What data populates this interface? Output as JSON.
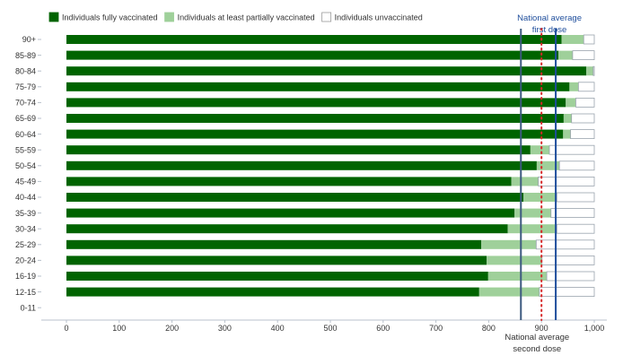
{
  "chart_data": {
    "type": "bar",
    "orientation": "horizontal",
    "stacked": true,
    "categories": [
      "90+",
      "85-89",
      "80-84",
      "75-79",
      "70-74",
      "65-69",
      "60-64",
      "55-59",
      "50-54",
      "45-49",
      "40-44",
      "35-39",
      "30-34",
      "25-29",
      "20-24",
      "16-19",
      "12-15",
      "0-11"
    ],
    "series": [
      {
        "name": "Individuals fully vaccinated",
        "color": "#006400",
        "values": [
          938,
          932,
          985,
          953,
          946,
          942,
          941,
          879,
          891,
          843,
          866,
          849,
          836,
          786,
          796,
          799,
          782,
          0
        ]
      },
      {
        "name": "Individuals at least partially vaccinated",
        "color": "#9fd09a",
        "values": [
          42,
          27,
          13,
          17,
          19,
          15,
          14,
          36,
          43,
          51,
          63,
          69,
          93,
          104,
          105,
          111,
          114,
          0
        ]
      },
      {
        "name": "Individuals unvaccinated",
        "color": "#ffffff",
        "values": [
          20,
          41,
          2,
          30,
          35,
          43,
          45,
          85,
          66,
          106,
          71,
          82,
          71,
          110,
          99,
          90,
          104,
          0
        ]
      }
    ],
    "xlim": [
      0,
      1000
    ],
    "xticks": [
      "0",
      "100",
      "200",
      "300",
      "400",
      "500",
      "600",
      "700",
      "800",
      "900",
      "1,000"
    ],
    "xtick_values": [
      0,
      100,
      200,
      300,
      400,
      500,
      600,
      700,
      800,
      900,
      1000
    ],
    "reference_lines": [
      {
        "label_lines": [
          "National average",
          "second dose"
        ],
        "value": 861,
        "color": "#3d5a80",
        "style": "solid",
        "label_position": "bottom"
      },
      {
        "label_lines": [
          "National average",
          "first dose"
        ],
        "value": 927,
        "color": "#1f4e9c",
        "style": "solid",
        "label_position": "top"
      },
      {
        "label_lines": [],
        "value": 900,
        "color": "#d62728",
        "style": "dotted",
        "label_position": "none"
      }
    ],
    "legend_position": "top-left",
    "grid": false
  }
}
